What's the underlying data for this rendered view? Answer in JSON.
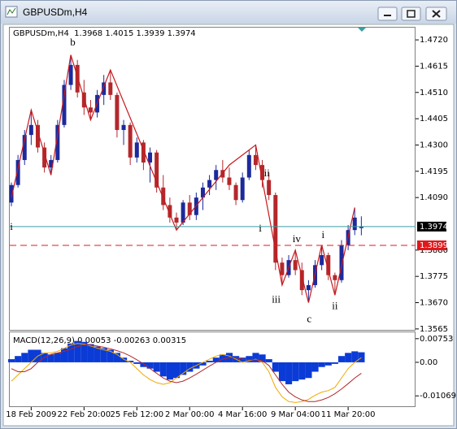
{
  "window": {
    "title": "GBPUSDm,H4"
  },
  "chart_data": [
    {
      "type": "candlestick",
      "title": "GBPUSDm,H4  1.3968 1.4015 1.3939 1.3974",
      "categories": [
        null,
        null,
        null,
        "18 Feb 2009",
        null,
        null,
        null,
        null,
        null,
        null,
        null,
        "22 Feb 20:00",
        null,
        null,
        null,
        null,
        null,
        null,
        null,
        "25 Feb 12:00",
        null,
        null,
        null,
        null,
        null,
        null,
        null,
        "2 Mar 00:00",
        null,
        null,
        null,
        null,
        null,
        null,
        null,
        "4 Mar 16:00",
        null,
        null,
        null,
        null,
        null,
        null,
        null,
        "9 Mar 04:00",
        null,
        null,
        null,
        null,
        null,
        null,
        null,
        "11 Mar 20:00",
        null,
        null
      ],
      "open": [
        1.407,
        1.414,
        1.424,
        1.434,
        1.438,
        1.429,
        1.421,
        1.424,
        1.438,
        1.454,
        1.462,
        1.451,
        1.445,
        1.443,
        1.45,
        1.455,
        1.45,
        1.436,
        1.438,
        1.425,
        1.431,
        1.423,
        1.427,
        1.413,
        1.406,
        1.401,
        1.399,
        1.407,
        1.402,
        1.409,
        1.413,
        1.416,
        1.42,
        1.417,
        1.414,
        1.408,
        1.417,
        1.426,
        1.422,
        1.416,
        1.41,
        1.383,
        1.378,
        1.384,
        1.38,
        1.372,
        1.374,
        1.382,
        1.386,
        1.378,
        1.376,
        1.39,
        1.396,
        1.3968
      ],
      "high": [
        1.415,
        1.426,
        1.436,
        1.444,
        1.44,
        1.431,
        1.426,
        1.44,
        1.456,
        1.466,
        1.464,
        1.456,
        1.448,
        1.452,
        1.458,
        1.46,
        1.451,
        1.44,
        1.439,
        1.433,
        1.432,
        1.429,
        1.428,
        1.418,
        1.409,
        1.403,
        1.408,
        1.41,
        1.411,
        1.415,
        1.418,
        1.422,
        1.424,
        1.421,
        1.415,
        1.419,
        1.428,
        1.43,
        1.424,
        1.419,
        1.411,
        1.385,
        1.386,
        1.388,
        1.383,
        1.376,
        1.384,
        1.39,
        1.387,
        1.379,
        1.392,
        1.398,
        1.405,
        1.4015
      ],
      "low": [
        1.4055,
        1.413,
        1.422,
        1.43,
        1.427,
        1.419,
        1.418,
        1.423,
        1.437,
        1.452,
        1.449,
        1.442,
        1.44,
        1.441,
        1.446,
        1.448,
        1.433,
        1.43,
        1.422,
        1.423,
        1.42,
        1.415,
        1.411,
        1.404,
        1.399,
        1.396,
        1.398,
        1.4,
        1.4,
        1.404,
        1.41,
        1.412,
        1.415,
        1.412,
        1.406,
        1.407,
        1.416,
        1.42,
        1.413,
        1.408,
        1.38,
        1.374,
        1.377,
        1.378,
        1.37,
        1.367,
        1.373,
        1.38,
        1.376,
        1.37,
        1.375,
        1.388,
        1.394,
        1.3939
      ],
      "close": [
        1.414,
        1.424,
        1.434,
        1.438,
        1.429,
        1.421,
        1.424,
        1.438,
        1.454,
        1.462,
        1.451,
        1.445,
        1.443,
        1.45,
        1.455,
        1.45,
        1.436,
        1.438,
        1.425,
        1.431,
        1.423,
        1.427,
        1.413,
        1.406,
        1.401,
        1.399,
        1.407,
        1.402,
        1.409,
        1.413,
        1.416,
        1.42,
        1.417,
        1.414,
        1.408,
        1.417,
        1.426,
        1.422,
        1.416,
        1.41,
        1.383,
        1.378,
        1.384,
        1.38,
        1.372,
        1.374,
        1.382,
        1.386,
        1.378,
        1.376,
        1.39,
        1.396,
        1.401,
        1.3974
      ],
      "up_color": "#1c2a9c",
      "down_color": "#b3282b",
      "ylim": [
        1.3558,
        1.4769
      ],
      "yticks": [
        {
          "value": 1.472,
          "label": "1.4720"
        },
        {
          "value": 1.4615,
          "label": "1.4615"
        },
        {
          "value": 1.451,
          "label": "1.4510"
        },
        {
          "value": 1.4405,
          "label": "1.4405"
        },
        {
          "value": 1.43,
          "label": "1.4300"
        },
        {
          "value": 1.4195,
          "label": "1.4195"
        },
        {
          "value": 1.409,
          "label": "1.4090"
        },
        {
          "value": 1.388,
          "label": "1.3880"
        },
        {
          "value": 1.3775,
          "label": "1.3775"
        },
        {
          "value": 1.367,
          "label": "1.3670"
        },
        {
          "value": 1.3565,
          "label": "1.3565"
        }
      ],
      "price_lines": [
        {
          "value": 1.3974,
          "label": "1.3974",
          "color": "#3a9ea0",
          "style": "solid"
        },
        {
          "value": 1.3899,
          "label": "1.3899",
          "color": "#e0181c",
          "style": "dashed"
        }
      ],
      "zigzag": {
        "x": [
          0,
          3,
          6,
          9,
          12,
          15,
          25,
          33,
          37,
          41,
          43,
          45,
          47,
          49,
          52
        ],
        "values": [
          1.409,
          1.444,
          1.418,
          1.466,
          1.44,
          1.46,
          1.396,
          1.422,
          1.43,
          1.374,
          1.388,
          1.367,
          1.39,
          1.37,
          1.405
        ],
        "color": "#c8181c"
      },
      "annotations": [
        {
          "text": "i",
          "x": 0,
          "y": 1.397
        },
        {
          "text": "b",
          "x": 9.3,
          "y": 1.4707
        },
        {
          "text": "ii",
          "x": 38.7,
          "y": 1.4185
        },
        {
          "text": "i",
          "x": 37.7,
          "y": 1.3963
        },
        {
          "text": "iii",
          "x": 40.1,
          "y": 1.3679
        },
        {
          "text": "iv",
          "x": 43.2,
          "y": 1.3921
        },
        {
          "text": "c",
          "x": 45.1,
          "y": 1.3601
        },
        {
          "text": "i",
          "x": 47.2,
          "y": 1.3937
        },
        {
          "text": "ii",
          "x": 49,
          "y": 1.3653
        }
      ]
    },
    {
      "type": "macd",
      "title": "MACD(12,26,9) 0.00053 -0.00263 0.00315",
      "values": [
        0.001,
        0.002,
        0.003,
        0.004,
        0.004,
        0.003,
        0.0025,
        0.003,
        0.0045,
        0.006,
        0.0068,
        0.0065,
        0.0058,
        0.005,
        0.0045,
        0.004,
        0.003,
        0.0015,
        0.0005,
        -0.0005,
        -0.0015,
        -0.002,
        -0.003,
        -0.0045,
        -0.0055,
        -0.005,
        -0.004,
        -0.003,
        -0.002,
        -0.001,
        0.0005,
        0.0015,
        0.0025,
        0.003,
        0.002,
        0.0015,
        0.002,
        0.003,
        0.0025,
        0.001,
        -0.003,
        -0.006,
        -0.007,
        -0.006,
        -0.0055,
        -0.005,
        -0.003,
        -0.0015,
        -0.001,
        -0.0005,
        0.002,
        0.003,
        0.0035,
        0.0032
      ],
      "color": "#0b3bd6",
      "series": [
        {
          "color": "#f2a900",
          "values": [
            -0.006,
            -0.004,
            -0.002,
            0.0,
            0.002,
            0.003,
            0.003,
            0.0035,
            0.0045,
            0.0055,
            0.006,
            0.0058,
            0.0052,
            0.0045,
            0.004,
            0.0035,
            0.0025,
            0.001,
            0.0,
            -0.002,
            -0.004,
            -0.0055,
            -0.0065,
            -0.007,
            -0.0065,
            -0.005,
            -0.0035,
            -0.002,
            -0.001,
            0.0,
            0.001,
            0.002,
            0.0025,
            0.002,
            0.001,
            0.0,
            0.0005,
            0.001,
            0.0,
            -0.003,
            -0.008,
            -0.011,
            -0.0125,
            -0.0128,
            -0.0125,
            -0.0118,
            -0.0105,
            -0.0095,
            -0.009,
            -0.008,
            -0.005,
            -0.002,
            0.0,
            0.0015
          ]
        },
        {
          "color": "#b3282b",
          "values": [
            -0.002,
            -0.003,
            -0.003,
            -0.002,
            0.0,
            0.0015,
            0.0025,
            0.003,
            0.0035,
            0.0042,
            0.005,
            0.0055,
            0.0055,
            0.0052,
            0.0048,
            0.0043,
            0.0037,
            0.003,
            0.002,
            0.0008,
            -0.0005,
            -0.002,
            -0.0035,
            -0.005,
            -0.006,
            -0.0065,
            -0.006,
            -0.005,
            -0.0038,
            -0.0025,
            -0.0012,
            0.0,
            0.001,
            0.0015,
            0.0015,
            0.001,
            0.0008,
            0.0008,
            0.0005,
            -0.001,
            -0.004,
            -0.007,
            -0.0095,
            -0.011,
            -0.012,
            -0.0125,
            -0.0125,
            -0.012,
            -0.0112,
            -0.01,
            -0.0085,
            -0.0068,
            -0.005,
            -0.0035
          ]
        }
      ],
      "ylim": [
        -0.014,
        0.0093
      ],
      "yticks": [
        0.00753,
        {
          "value": 0,
          "label": "0.00"
        },
        -0.01069
      ]
    }
  ]
}
